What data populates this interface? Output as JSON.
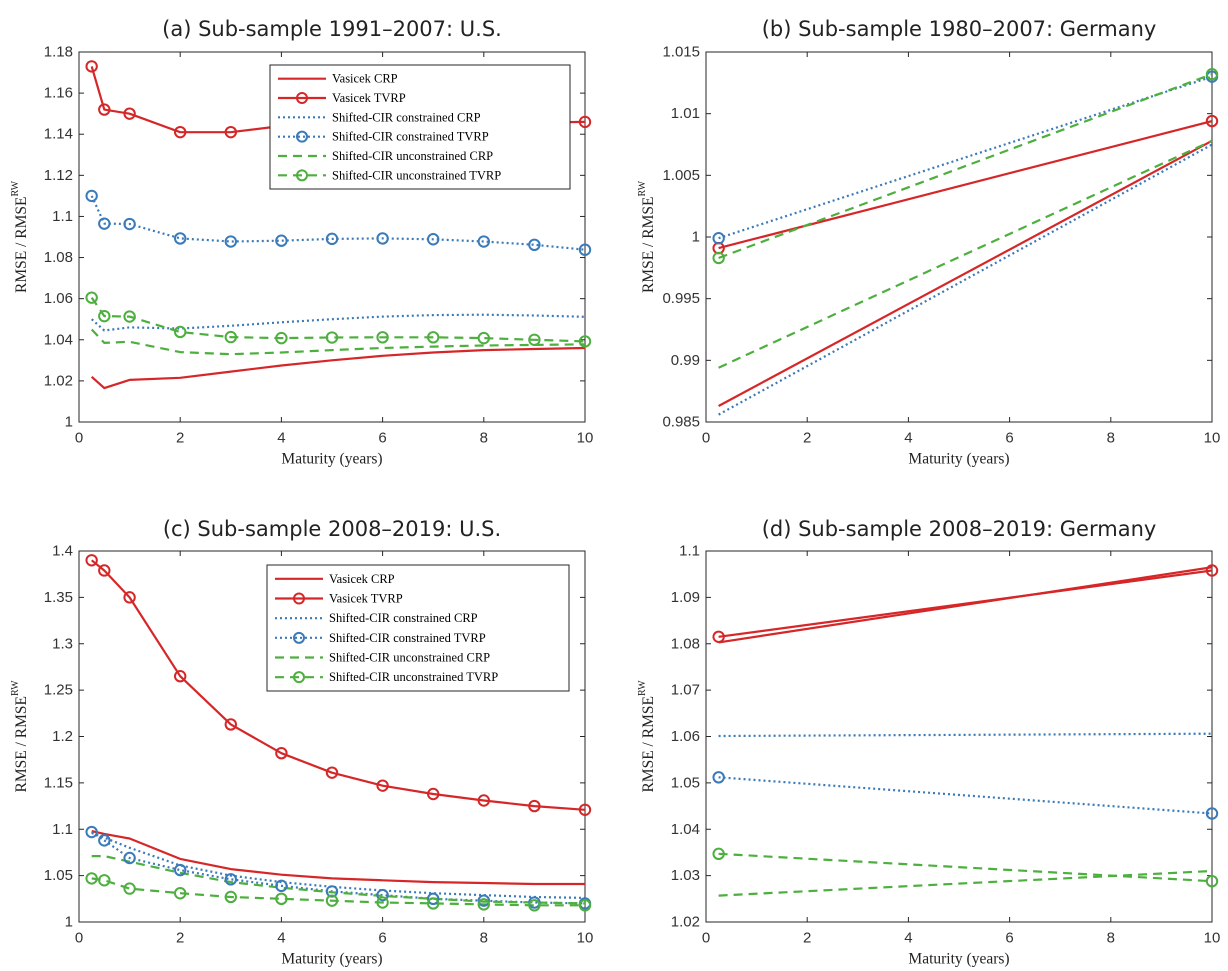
{
  "chart_data": [
    {
      "type": "line",
      "title": "(a) Sub-sample 1991–2007: U.S.",
      "xlabel": "Maturity (years)",
      "ylabel": "RMSE / RMSE",
      "ylabel_sup": "RW",
      "xlim": [
        0,
        10
      ],
      "ylim": [
        1,
        1.18
      ],
      "xticks": [
        "0",
        "2",
        "4",
        "6",
        "8",
        "10"
      ],
      "yticks": [
        "1",
        "1.02",
        "1.04",
        "1.06",
        "1.08",
        "1.1",
        "1.12",
        "1.14",
        "1.16",
        "1.18"
      ],
      "legend": "top-right",
      "series": [
        {
          "name": "Vasicek CRP",
          "color": "#d62728",
          "style": "solid",
          "marker": false,
          "x": [
            0.25,
            0.5,
            1,
            2,
            3,
            4,
            5,
            6,
            7,
            8,
            9,
            10
          ],
          "y": [
            1.022,
            1.0165,
            1.0205,
            1.0215,
            1.0245,
            1.0275,
            1.03,
            1.0322,
            1.0338,
            1.035,
            1.0355,
            1.036
          ]
        },
        {
          "name": "Vasicek TVRP",
          "color": "#d62728",
          "style": "solid",
          "marker": true,
          "x": [
            0.25,
            0.5,
            1,
            2,
            3,
            4,
            10
          ],
          "y": [
            1.173,
            1.152,
            1.15,
            1.141,
            1.141,
            1.144,
            1.146
          ]
        },
        {
          "name": "Shifted-CIR constrained CRP",
          "color": "#3a7ab8",
          "style": "dotted",
          "marker": false,
          "x": [
            0.25,
            0.5,
            1,
            2,
            3,
            4,
            5,
            6,
            7,
            8,
            9,
            10
          ],
          "y": [
            1.05,
            1.0445,
            1.046,
            1.0455,
            1.0468,
            1.0485,
            1.05,
            1.0513,
            1.052,
            1.0522,
            1.0518,
            1.0512
          ]
        },
        {
          "name": "Shifted-CIR constrained TVRP",
          "color": "#3a7ab8",
          "style": "dotted",
          "marker": true,
          "x": [
            0.25,
            0.5,
            1,
            2,
            3,
            4,
            5,
            6,
            7,
            8,
            9,
            10
          ],
          "y": [
            1.11,
            1.0965,
            1.0963,
            1.0893,
            1.0878,
            1.0882,
            1.0891,
            1.0893,
            1.0889,
            1.0878,
            1.0862,
            1.0838
          ]
        },
        {
          "name": "Shifted-CIR unconstrained CRP",
          "color": "#4daf3e",
          "style": "dashed",
          "marker": false,
          "x": [
            0.25,
            0.5,
            1,
            2,
            3,
            4,
            5,
            6,
            7,
            8,
            9,
            10
          ],
          "y": [
            1.045,
            1.0385,
            1.039,
            1.034,
            1.033,
            1.0338,
            1.035,
            1.036,
            1.0367,
            1.0372,
            1.0375,
            1.0378
          ]
        },
        {
          "name": "Shifted-CIR unconstrained TVRP",
          "color": "#4daf3e",
          "style": "dashed",
          "marker": true,
          "x": [
            0.25,
            0.5,
            1,
            2,
            3,
            4,
            5,
            6,
            7,
            8,
            9,
            10
          ],
          "y": [
            1.0605,
            1.0515,
            1.0513,
            1.0438,
            1.0413,
            1.0408,
            1.0411,
            1.0412,
            1.0412,
            1.0408,
            1.04,
            1.0392
          ]
        }
      ]
    },
    {
      "type": "line",
      "title": "(b) Sub-sample 1980–2007: Germany",
      "xlabel": "Maturity (years)",
      "ylabel": "RMSE / RMSE",
      "ylabel_sup": "RW",
      "xlim": [
        0,
        10
      ],
      "ylim": [
        0.985,
        1.015
      ],
      "xticks": [
        "0",
        "2",
        "4",
        "6",
        "8",
        "10"
      ],
      "yticks": [
        "0.985",
        "0.99",
        "0.995",
        "1",
        "1.005",
        "1.01",
        "1.015"
      ],
      "legend": "none",
      "series": [
        {
          "color": "#d62728",
          "style": "solid",
          "marker": false,
          "x": [
            0.25,
            10
          ],
          "y": [
            0.9863,
            1.0078
          ]
        },
        {
          "color": "#d62728",
          "style": "solid",
          "marker": true,
          "x": [
            0.25,
            10
          ],
          "y": [
            0.9991,
            1.0094
          ]
        },
        {
          "color": "#3a7ab8",
          "style": "dotted",
          "marker": false,
          "x": [
            0.25,
            10
          ],
          "y": [
            0.9856,
            1.0075
          ]
        },
        {
          "color": "#3a7ab8",
          "style": "dotted",
          "marker": true,
          "x": [
            0.25,
            10
          ],
          "y": [
            0.9999,
            1.013
          ]
        },
        {
          "color": "#4daf3e",
          "style": "dashed",
          "marker": false,
          "x": [
            0.25,
            10
          ],
          "y": [
            0.9894,
            1.0078
          ]
        },
        {
          "color": "#4daf3e",
          "style": "dashed",
          "marker": true,
          "x": [
            0.25,
            10
          ],
          "y": [
            0.9983,
            1.0132
          ]
        }
      ]
    },
    {
      "type": "line",
      "title": "(c) Sub-sample 2008–2019: U.S.",
      "xlabel": "Maturity (years)",
      "ylabel": "RMSE / RMSE",
      "ylabel_sup": "RW",
      "xlim": [
        0,
        10
      ],
      "ylim": [
        1,
        1.4
      ],
      "xticks": [
        "0",
        "2",
        "4",
        "6",
        "8",
        "10"
      ],
      "yticks": [
        "1",
        "1.05",
        "1.1",
        "1.15",
        "1.2",
        "1.25",
        "1.3",
        "1.35",
        "1.4"
      ],
      "legend": "top-right",
      "series": [
        {
          "name": "Vasicek CRP",
          "color": "#d62728",
          "style": "solid",
          "marker": false,
          "x": [
            0.25,
            0.5,
            1,
            2,
            3,
            4,
            5,
            6,
            7,
            8,
            9,
            10
          ],
          "y": [
            1.098,
            1.095,
            1.09,
            1.068,
            1.057,
            1.051,
            1.047,
            1.045,
            1.043,
            1.042,
            1.041,
            1.041
          ]
        },
        {
          "name": "Vasicek TVRP",
          "color": "#d62728",
          "style": "solid",
          "marker": true,
          "x": [
            0.25,
            0.5,
            1,
            2,
            3,
            4,
            5,
            6,
            7,
            8,
            9,
            10
          ],
          "y": [
            1.39,
            1.379,
            1.35,
            1.265,
            1.213,
            1.182,
            1.161,
            1.147,
            1.138,
            1.131,
            1.125,
            1.121
          ]
        },
        {
          "name": "Shifted-CIR constrained CRP",
          "color": "#3a7ab8",
          "style": "dotted",
          "marker": false,
          "x": [
            0.25,
            0.5,
            1,
            2,
            3,
            4,
            5,
            6,
            7,
            8,
            9,
            10
          ],
          "y": [
            1.096,
            1.091,
            1.08,
            1.061,
            1.05,
            1.043,
            1.038,
            1.034,
            1.031,
            1.029,
            1.027,
            1.026
          ]
        },
        {
          "name": "Shifted-CIR constrained TVRP",
          "color": "#3a7ab8",
          "style": "dotted",
          "marker": true,
          "x": [
            0.25,
            0.5,
            1,
            2,
            3,
            4,
            5,
            6,
            7,
            8,
            9,
            10
          ],
          "y": [
            1.097,
            1.088,
            1.069,
            1.056,
            1.046,
            1.039,
            1.033,
            1.029,
            1.025,
            1.023,
            1.021,
            1.02
          ]
        },
        {
          "name": "Shifted-CIR unconstrained CRP",
          "color": "#4daf3e",
          "style": "dashed",
          "marker": false,
          "x": [
            0.25,
            0.5,
            1,
            2,
            3,
            4,
            5,
            6,
            7,
            8,
            9,
            10
          ],
          "y": [
            1.071,
            1.071,
            1.065,
            1.053,
            1.043,
            1.037,
            1.032,
            1.028,
            1.025,
            1.022,
            1.021,
            1.02
          ]
        },
        {
          "name": "Shifted-CIR unconstrained TVRP",
          "color": "#4daf3e",
          "style": "dashed",
          "marker": true,
          "x": [
            0.25,
            0.5,
            1,
            2,
            3,
            4,
            5,
            6,
            7,
            8,
            9,
            10
          ],
          "y": [
            1.047,
            1.045,
            1.036,
            1.031,
            1.027,
            1.025,
            1.023,
            1.021,
            1.02,
            1.019,
            1.018,
            1.018
          ]
        }
      ]
    },
    {
      "type": "line",
      "title": "(d) Sub-sample 2008–2019: Germany",
      "xlabel": "Maturity (years)",
      "ylabel": "RMSE / RMSE",
      "ylabel_sup": "RW",
      "xlim": [
        0,
        10
      ],
      "ylim": [
        1.02,
        1.1
      ],
      "xticks": [
        "0",
        "2",
        "4",
        "6",
        "8",
        "10"
      ],
      "yticks": [
        "1.02",
        "1.03",
        "1.04",
        "1.05",
        "1.06",
        "1.07",
        "1.08",
        "1.09",
        "1.1"
      ],
      "legend": "none",
      "series": [
        {
          "color": "#d62728",
          "style": "solid",
          "marker": false,
          "x": [
            0.25,
            10
          ],
          "y": [
            1.0803,
            1.0965
          ]
        },
        {
          "color": "#d62728",
          "style": "solid",
          "marker": true,
          "x": [
            0.25,
            10
          ],
          "y": [
            1.0815,
            1.0958
          ]
        },
        {
          "color": "#3a7ab8",
          "style": "dotted",
          "marker": false,
          "x": [
            0.25,
            10
          ],
          "y": [
            1.0601,
            1.0606
          ]
        },
        {
          "color": "#3a7ab8",
          "style": "dotted",
          "marker": true,
          "x": [
            0.25,
            10
          ],
          "y": [
            1.0512,
            1.0434
          ]
        },
        {
          "color": "#4daf3e",
          "style": "dashed",
          "marker": false,
          "x": [
            0.25,
            10
          ],
          "y": [
            1.0257,
            1.031
          ]
        },
        {
          "color": "#4daf3e",
          "style": "dashed",
          "marker": true,
          "x": [
            0.25,
            10
          ],
          "y": [
            1.0347,
            1.0288
          ]
        }
      ]
    }
  ]
}
